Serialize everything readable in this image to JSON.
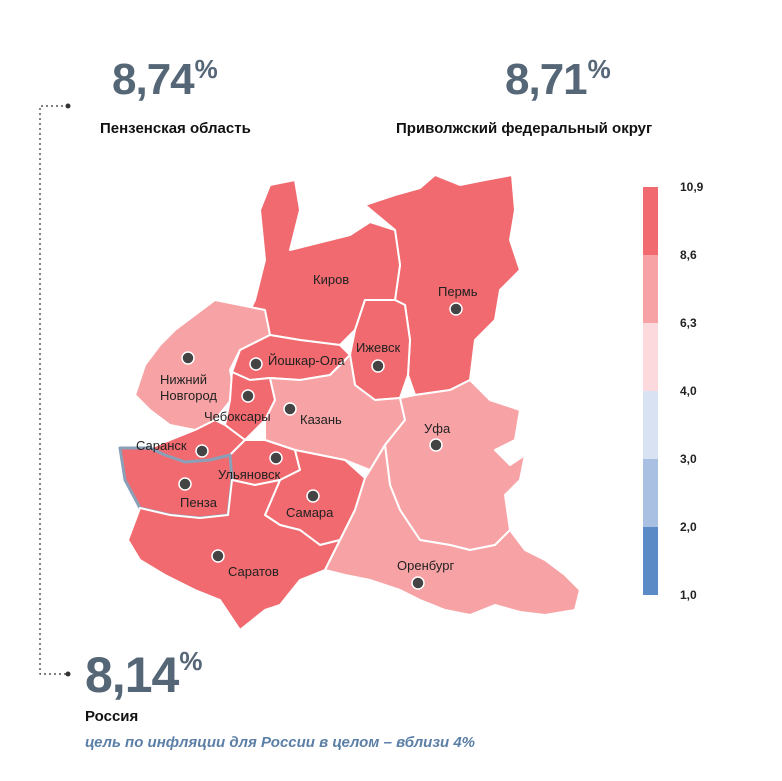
{
  "stats": {
    "penza": {
      "value": "8,74",
      "unit": "%",
      "label": "Пензенская область"
    },
    "pfo": {
      "value": "8,71",
      "unit": "%",
      "label": "Приволжский федеральный округ"
    },
    "russia": {
      "value": "8,14",
      "unit": "%",
      "label": "Россия",
      "note": "цель по инфляции для России в целом – вблизи 4%"
    }
  },
  "colors": {
    "high": "#f06a6f",
    "mid": "#f7a3a6",
    "light": "#fcd9dc",
    "pale_blue": "#d9e2f2",
    "blue_light": "#a9c0e2",
    "blue": "#5b8ac6",
    "value_text": "#556677",
    "note_text": "#5b7fa6"
  },
  "legend": {
    "ticks": [
      "10,9",
      "8,6",
      "6,3",
      "4,0",
      "3,0",
      "2,0",
      "1,0"
    ]
  },
  "cities": [
    {
      "id": "kirov",
      "name": "Киров"
    },
    {
      "id": "perm",
      "name": "Пермь"
    },
    {
      "id": "izhevsk",
      "name": "Ижевск"
    },
    {
      "id": "yoshkar-ola",
      "name": "Йошкар-Ола"
    },
    {
      "id": "nizhny-novgorod",
      "name": "Нижний Новгород"
    },
    {
      "id": "cheboksary",
      "name": "Чебоксары"
    },
    {
      "id": "kazan",
      "name": "Казань"
    },
    {
      "id": "ufa",
      "name": "Уфа"
    },
    {
      "id": "saransk",
      "name": "Саранск"
    },
    {
      "id": "ulyanovsk",
      "name": "Ульяновск"
    },
    {
      "id": "penza",
      "name": "Пенза"
    },
    {
      "id": "samara",
      "name": "Самара"
    },
    {
      "id": "saratov",
      "name": "Саратов"
    },
    {
      "id": "orenburg",
      "name": "Оренбург"
    }
  ]
}
